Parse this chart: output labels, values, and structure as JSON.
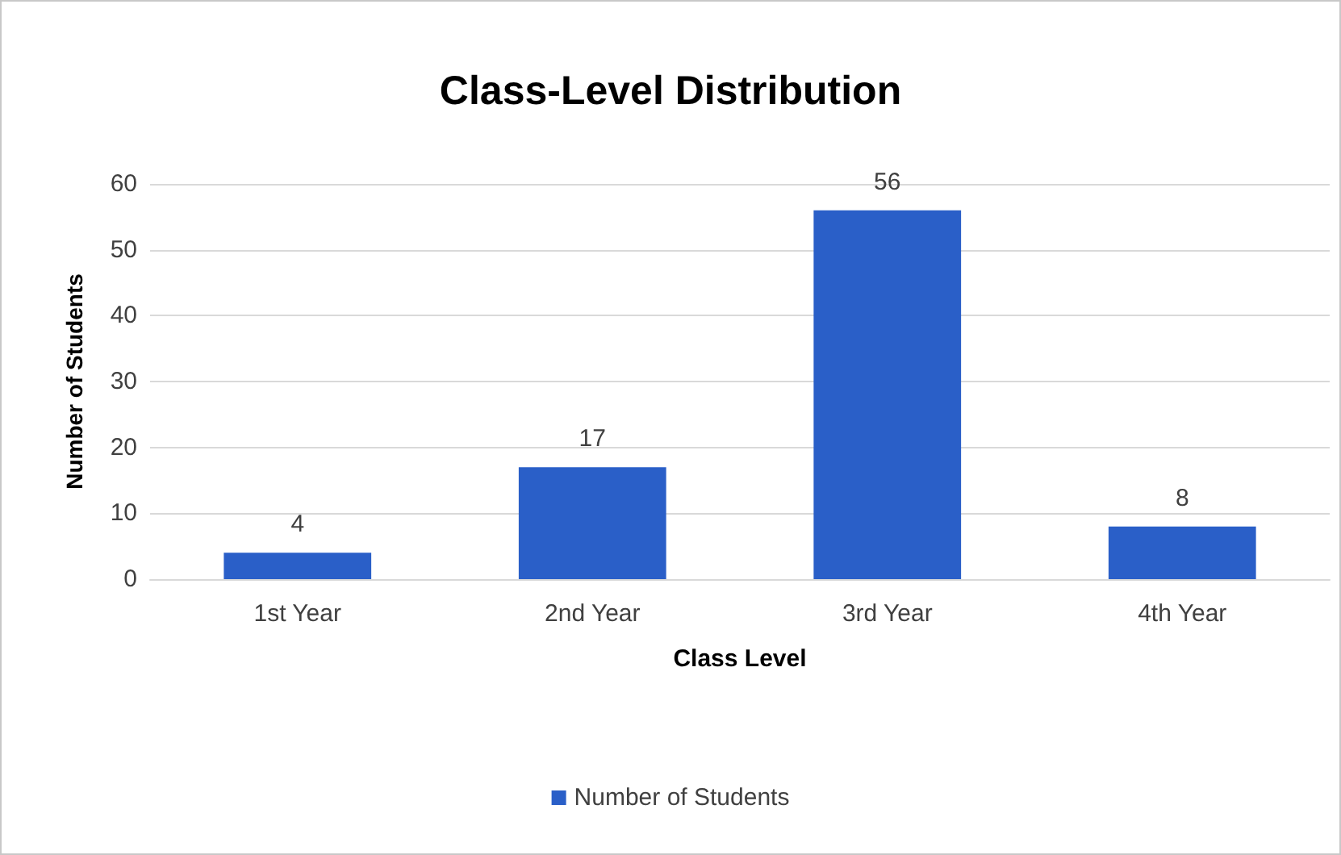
{
  "chart_data": {
    "type": "bar",
    "title": "Class-Level Distribution",
    "xlabel": "Class Level",
    "ylabel": "Number of Students",
    "categories": [
      "1st Year",
      "2nd Year",
      "3rd Year",
      "4th Year"
    ],
    "series": [
      {
        "name": "Number of Students",
        "color": "#2a5fc8",
        "values": [
          4,
          17,
          56,
          8
        ]
      }
    ],
    "ylim": [
      0,
      60
    ],
    "yticks": [
      0,
      10,
      20,
      30,
      40,
      50,
      60
    ],
    "grid": "y",
    "legend": "bottom",
    "data_labels": true
  }
}
